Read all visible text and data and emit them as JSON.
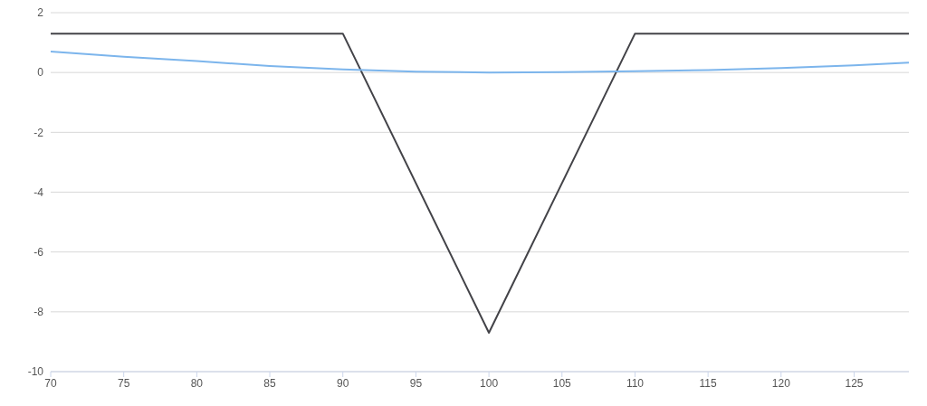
{
  "chart_data": {
    "type": "line",
    "xlim": [
      70,
      128.75
    ],
    "xticks": [
      70,
      75,
      80,
      85,
      90,
      95,
      100,
      105,
      110,
      115,
      120,
      125
    ],
    "ylim": [
      -10,
      2
    ],
    "yticks": [
      -10,
      -8,
      -6,
      -4,
      -2,
      0,
      2
    ],
    "grid": "y",
    "marker": "none",
    "line_style": "solid",
    "series": [
      {
        "color": "#434348",
        "x": [
          70,
          90,
          100,
          110,
          128.75
        ],
        "values": [
          1.3,
          1.3,
          -8.7,
          1.3,
          1.3
        ]
      },
      {
        "color": "#7cb5ec",
        "x": [
          70,
          75,
          80,
          85,
          90,
          95,
          100,
          105,
          110,
          115,
          120,
          125,
          128.75
        ],
        "values": [
          0.7,
          0.53,
          0.38,
          0.22,
          0.1,
          0.03,
          0.0,
          0.01,
          0.04,
          0.08,
          0.15,
          0.24,
          0.33
        ]
      }
    ]
  }
}
